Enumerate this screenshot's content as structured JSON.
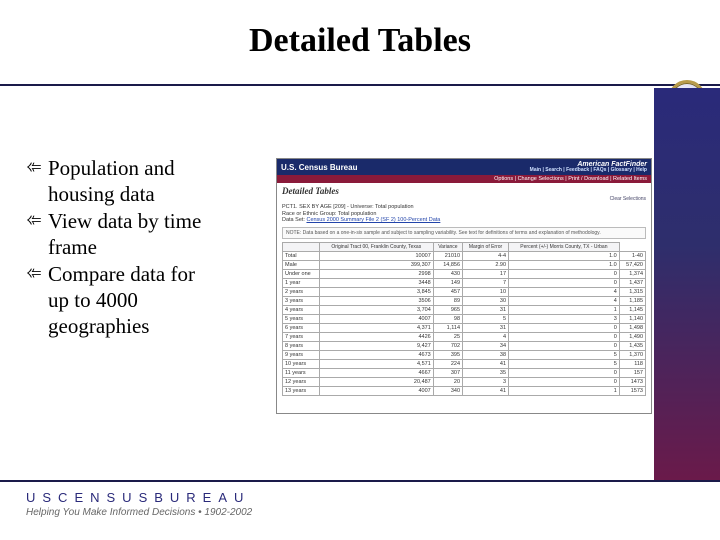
{
  "slide": {
    "title": "Detailed Tables",
    "bullets": [
      {
        "line1": "Population and",
        "line2": "housing data"
      },
      {
        "line1": "View data by time",
        "line2": "frame"
      },
      {
        "line1": "Compare data for",
        "line2": "up to 4000",
        "line3": "geographies"
      }
    ]
  },
  "screenshot": {
    "agency": "U.S. Census Bureau",
    "aff_title": "American FactFinder",
    "aff_links": "Main | Search | Feedback | FAQs | Glossary | Help",
    "toolbar": "Options | Change Selections | Print / Download | Related Items",
    "label_detailed": "Detailed Tables",
    "clear_link": "Clear Selections",
    "meta_line1": "PCT1. SEX BY AGE [209] - Universe: Total population",
    "meta_line2": "Race or Ethnic Group: Total population",
    "meta_line3_prefix": "Data Set: ",
    "meta_line3_link": "Census 2000 Summary File 2 (SF 2) 100-Percent Data",
    "note": "NOTE: Data based on a one-in-six sample and subject to sampling variability. See text for definitions of terms and explanation of methodology.",
    "columns": [
      "",
      "Original Tract 00, Franklin County, Texas",
      "Variance",
      "Margin of Error",
      "Percent (+/-) Morris County, TX - Urban"
    ],
    "rows": [
      [
        "Total",
        "10007",
        "21010",
        "4-4",
        "1.0",
        "1-40"
      ],
      [
        "Male",
        "399,307",
        "14,856",
        "2.90",
        "1.0",
        "57,420"
      ],
      [
        "Under one",
        "2998",
        "430",
        "17",
        "0",
        "1,374"
      ],
      [
        "1 year",
        "3448",
        "149",
        "7",
        "0",
        "1,437"
      ],
      [
        "2 years",
        "3,845",
        "457",
        "10",
        "4",
        "1,315"
      ],
      [
        "3 years",
        "3506",
        "89",
        "30",
        "4",
        "1,185"
      ],
      [
        "4 years",
        "3,704",
        "965",
        "31",
        "1",
        "1,145"
      ],
      [
        "5 years",
        "4007",
        "98",
        "5",
        "3",
        "1,140"
      ],
      [
        "6 years",
        "4,371",
        "1,114",
        "31",
        "0",
        "1,498"
      ],
      [
        "7 years",
        "4426",
        "25",
        "4",
        "0",
        "1,490"
      ],
      [
        "8 years",
        "9,427",
        "702",
        "34",
        "0",
        "1,435"
      ],
      [
        "9 years",
        "4673",
        "395",
        "38",
        "5",
        "1,370"
      ],
      [
        "10 years",
        "4,571",
        "224",
        "41",
        "5",
        "118"
      ],
      [
        "11 years",
        "4667",
        "307",
        "35",
        "0",
        "157"
      ],
      [
        "12 years",
        "20,487",
        "20",
        "3",
        "0",
        "1473"
      ],
      [
        "13 years",
        "4007",
        "340",
        "41",
        "1",
        "1573"
      ]
    ],
    "styling": {
      "header_bg": "#1a2a6a",
      "bar_bg": "#8a1a3a",
      "accent_purple": "#6a1a4a",
      "border_color": "#aaaaaa",
      "title_fontsize": 34
    }
  },
  "footer": {
    "brand": "USCENSUSBUREAU",
    "tagline": "Helping You Make Informed Decisions • 1902-2002"
  },
  "colors": {
    "nav_top": "#2a2a7a",
    "nav_bottom": "#6a1a4a",
    "rule": "#1a1a4a"
  }
}
